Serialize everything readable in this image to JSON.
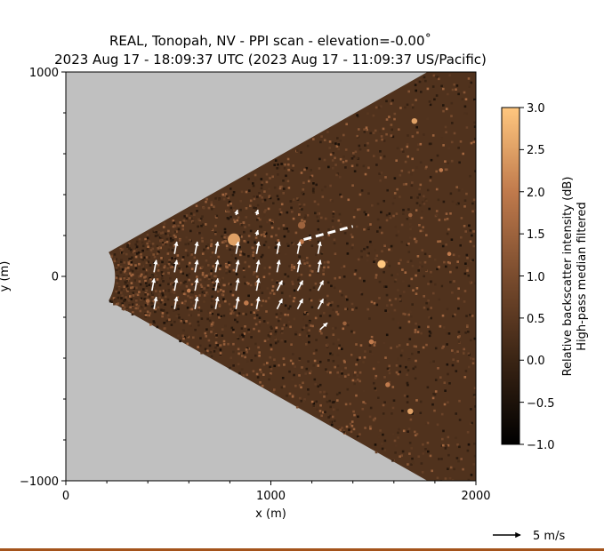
{
  "chart_data": {
    "type": "heatmap",
    "title": "REAL, Tonopah, NV - PPI scan - elevation=-0.00˚",
    "subtitle": "2023 Aug 17 - 18:09:37 UTC (2023 Aug 17 - 11:09:37 US/Pacific)",
    "xlabel": "x (m)",
    "ylabel": "y (m)",
    "xlim": [
      0,
      2000
    ],
    "ylim": [
      -1000,
      1000
    ],
    "x_ticks": [
      0,
      1000,
      2000
    ],
    "y_ticks": [
      1000,
      0,
      -1000
    ],
    "x_tick_labels": [
      "0",
      "1000",
      "2000"
    ],
    "y_tick_labels": [
      "1000",
      "0",
      "−1000"
    ],
    "scan": {
      "origin": [
        0,
        0
      ],
      "min_range_m": 240,
      "max_range_m": 2400,
      "azimuth_half_width_deg": 29.5,
      "background_color": "#c0c0c0"
    },
    "colorbar": {
      "label_line1": "Relative backscatter intensity (dB)",
      "label_line2": "High-pass median filtered",
      "vmin": -1.0,
      "vmax": 3.0,
      "ticks": [
        3.0,
        2.5,
        2.0,
        1.5,
        1.0,
        0.5,
        0.0,
        -0.5,
        -1.0
      ],
      "tick_labels": [
        "3.0",
        "2.5",
        "2.0",
        "1.5",
        "1.0",
        "0.5",
        "0.0",
        "−0.5",
        "−1.0"
      ],
      "colormap": "copper",
      "colors": [
        "#000000",
        "#3a2414",
        "#7a4c2e",
        "#c07a4c",
        "#ffc77f"
      ]
    },
    "vectors": {
      "unit": "m/s",
      "scale_m_per_ms": 14.2,
      "arrows": [
        {
          "x": 430,
          "y": 20,
          "u": 0.8,
          "v": 4.2
        },
        {
          "x": 420,
          "y": -70,
          "u": 0.8,
          "v": 4.2
        },
        {
          "x": 430,
          "y": -160,
          "u": 0.8,
          "v": 4.2
        },
        {
          "x": 530,
          "y": 110,
          "u": 0.8,
          "v": 4.2
        },
        {
          "x": 530,
          "y": 20,
          "u": 0.8,
          "v": 4.2
        },
        {
          "x": 530,
          "y": -70,
          "u": 0.8,
          "v": 4.2
        },
        {
          "x": 530,
          "y": -160,
          "u": 0.8,
          "v": 4.2
        },
        {
          "x": 630,
          "y": 110,
          "u": 0.8,
          "v": 4.2
        },
        {
          "x": 630,
          "y": 20,
          "u": 0.8,
          "v": 4.2
        },
        {
          "x": 630,
          "y": -70,
          "u": 0.8,
          "v": 4.2
        },
        {
          "x": 630,
          "y": -160,
          "u": 0.8,
          "v": 4.2
        },
        {
          "x": 730,
          "y": 110,
          "u": 0.8,
          "v": 4.2
        },
        {
          "x": 730,
          "y": 20,
          "u": 0.8,
          "v": 4.2
        },
        {
          "x": 730,
          "y": -70,
          "u": 0.8,
          "v": 4.2
        },
        {
          "x": 730,
          "y": -160,
          "u": 0.8,
          "v": 4.2
        },
        {
          "x": 830,
          "y": 110,
          "u": 0.8,
          "v": 4.2
        },
        {
          "x": 830,
          "y": 20,
          "u": 0.8,
          "v": 4.2
        },
        {
          "x": 830,
          "y": -70,
          "u": 0.8,
          "v": 4.2
        },
        {
          "x": 830,
          "y": -160,
          "u": 0.8,
          "v": 4.2
        },
        {
          "x": 830,
          "y": 300,
          "u": 0.5,
          "v": 1.8
        },
        {
          "x": 930,
          "y": 300,
          "u": 0.5,
          "v": 1.8
        },
        {
          "x": 930,
          "y": 200,
          "u": 0.5,
          "v": 1.8
        },
        {
          "x": 930,
          "y": 110,
          "u": 0.8,
          "v": 4.2
        },
        {
          "x": 930,
          "y": 20,
          "u": 0.8,
          "v": 4.2
        },
        {
          "x": 930,
          "y": -70,
          "u": 0.8,
          "v": 4.2
        },
        {
          "x": 930,
          "y": -160,
          "u": 0.8,
          "v": 4.2
        },
        {
          "x": 1030,
          "y": 110,
          "u": 0.8,
          "v": 4.2
        },
        {
          "x": 1030,
          "y": 20,
          "u": 0.8,
          "v": 4.2
        },
        {
          "x": 1030,
          "y": -70,
          "u": 1.8,
          "v": 3.5
        },
        {
          "x": 1030,
          "y": -160,
          "u": 1.8,
          "v": 3.5
        },
        {
          "x": 1130,
          "y": 110,
          "u": 0.8,
          "v": 4.2
        },
        {
          "x": 1130,
          "y": 20,
          "u": 0.8,
          "v": 4.2
        },
        {
          "x": 1130,
          "y": -70,
          "u": 1.8,
          "v": 3.5
        },
        {
          "x": 1130,
          "y": -160,
          "u": 1.8,
          "v": 3.5
        },
        {
          "x": 1230,
          "y": 110,
          "u": 0.8,
          "v": 4.2
        },
        {
          "x": 1230,
          "y": 20,
          "u": 0.8,
          "v": 4.2
        },
        {
          "x": 1230,
          "y": -70,
          "u": 1.8,
          "v": 3.5
        },
        {
          "x": 1230,
          "y": -160,
          "u": 1.8,
          "v": 3.5
        },
        {
          "x": 1240,
          "y": -260,
          "u": 2.5,
          "v": 2.3
        }
      ],
      "dashed_line": {
        "x1": 1160,
        "y1": 180,
        "x2": 1400,
        "y2": 245
      }
    },
    "features": [
      {
        "x": 820,
        "y": 180,
        "r": 30,
        "value": 2.5
      },
      {
        "x": 1150,
        "y": 250,
        "r": 18,
        "value": 1.5
      },
      {
        "x": 1150,
        "y": 170,
        "r": 12,
        "value": 2.0
      },
      {
        "x": 1540,
        "y": 60,
        "r": 20,
        "value": 3.0
      },
      {
        "x": 1700,
        "y": 760,
        "r": 14,
        "value": 2.5
      },
      {
        "x": 1830,
        "y": 520,
        "r": 10,
        "value": 2.0
      },
      {
        "x": 1870,
        "y": 110,
        "r": 10,
        "value": 2.0
      },
      {
        "x": 1680,
        "y": 300,
        "r": 10,
        "value": 1.5
      },
      {
        "x": 1490,
        "y": -320,
        "r": 12,
        "value": 2.0
      },
      {
        "x": 1570,
        "y": -530,
        "r": 12,
        "value": 2.0
      },
      {
        "x": 1680,
        "y": -660,
        "r": 14,
        "value": 2.5
      },
      {
        "x": 1360,
        "y": -230,
        "r": 10,
        "value": 1.5
      },
      {
        "x": 880,
        "y": -130,
        "r": 12,
        "value": 2.0
      },
      {
        "x": 600,
        "y": -70,
        "r": 10,
        "value": 2.0
      },
      {
        "x": 400,
        "y": -120,
        "r": 10,
        "value": 1.5
      }
    ],
    "quiver_key": {
      "label": "5 m/s",
      "value": 5
    }
  }
}
